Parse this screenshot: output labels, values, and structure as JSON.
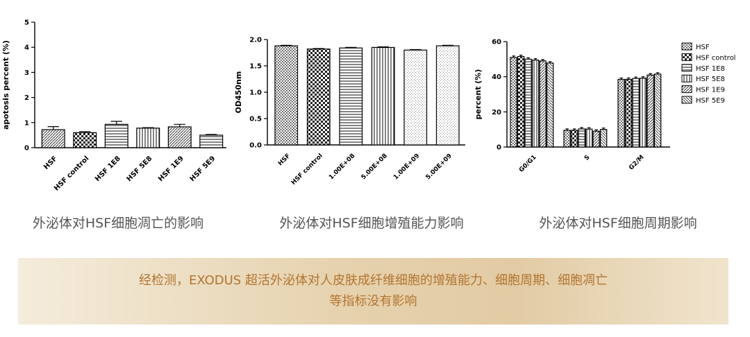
{
  "charts": {
    "chart_data": [
      {
        "type": "bar",
        "title": "",
        "xlabel": "",
        "ylabel": "apotosis percent (%)",
        "ylim": [
          0,
          5
        ],
        "yticks": [
          "0",
          "1",
          "2",
          "3",
          "4",
          "5"
        ],
        "categories": [
          "HSF",
          "HSF control",
          "HSF 1E8",
          "HSF 5E8",
          "HSF 1E9",
          "HSF 5E9"
        ],
        "values": [
          0.72,
          0.6,
          0.93,
          0.78,
          0.83,
          0.5
        ],
        "errors": [
          0.12,
          0.04,
          0.12,
          0.02,
          0.1,
          0.03
        ],
        "patterns": [
          "diag",
          "check",
          "hlines",
          "vlines",
          "diag",
          "hlines"
        ],
        "error_bars": true,
        "legend": "none"
      },
      {
        "type": "bar",
        "title": "",
        "xlabel": "",
        "ylabel": "OD450nm",
        "ylim": [
          0,
          2.0
        ],
        "yticks": [
          "0.0",
          "0.5",
          "1.0",
          "1.5",
          "2.0"
        ],
        "categories": [
          "HSF",
          "HSF control",
          "1.00E+08",
          "5.00E+08",
          "1.00E+09",
          "5.00E+09"
        ],
        "values": [
          1.88,
          1.82,
          1.84,
          1.85,
          1.8,
          1.88
        ],
        "errors": [
          0.01,
          0.01,
          0.01,
          0.01,
          0.01,
          0.01
        ],
        "patterns": [
          "dots",
          "check",
          "hlines",
          "vlines",
          "fine",
          "fine"
        ],
        "error_bars": true,
        "legend": "none"
      },
      {
        "type": "bar",
        "title": "",
        "xlabel": "",
        "ylabel": "percent (%)",
        "ylim": [
          0,
          60
        ],
        "yticks": [
          "0",
          "20",
          "40",
          "60"
        ],
        "categories": [
          "G0/G1",
          "S",
          "G2/M"
        ],
        "series": [
          {
            "name": "HSF",
            "values": [
              51,
              9.5,
              38.5
            ],
            "pattern": "dots"
          },
          {
            "name": "HSF control",
            "values": [
              51.5,
              9.5,
              38.5
            ],
            "pattern": "check"
          },
          {
            "name": "HSF 1E8",
            "values": [
              50,
              10.3,
              39
            ],
            "pattern": "hlines"
          },
          {
            "name": "HSF 5E8",
            "values": [
              49.5,
              10.2,
              39.2
            ],
            "pattern": "vlines"
          },
          {
            "name": "HSF 1E9",
            "values": [
              49,
              9,
              41
            ],
            "pattern": "diag"
          },
          {
            "name": "HSF 5E9",
            "values": [
              47.8,
              10,
              41.5
            ],
            "pattern": "diag2"
          }
        ],
        "error_bars": true,
        "legend": "top-right"
      }
    ]
  },
  "captions": {
    "c1": "外泌体对HSF细胞凋亡的影响",
    "c2": "外泌体对HSF细胞增殖能力影响",
    "c3": "外泌体对HSF细胞周期影响"
  },
  "banner": {
    "line1": "经检测，EXODUS 超活外泌体对人皮肤成纤维细胞的增殖能力、细胞周期、细胞凋亡",
    "line2": "等指标没有影响"
  },
  "colors": {
    "bar_stroke": "#000000",
    "caption_text": "#555555",
    "banner_text": "#b3742f"
  }
}
